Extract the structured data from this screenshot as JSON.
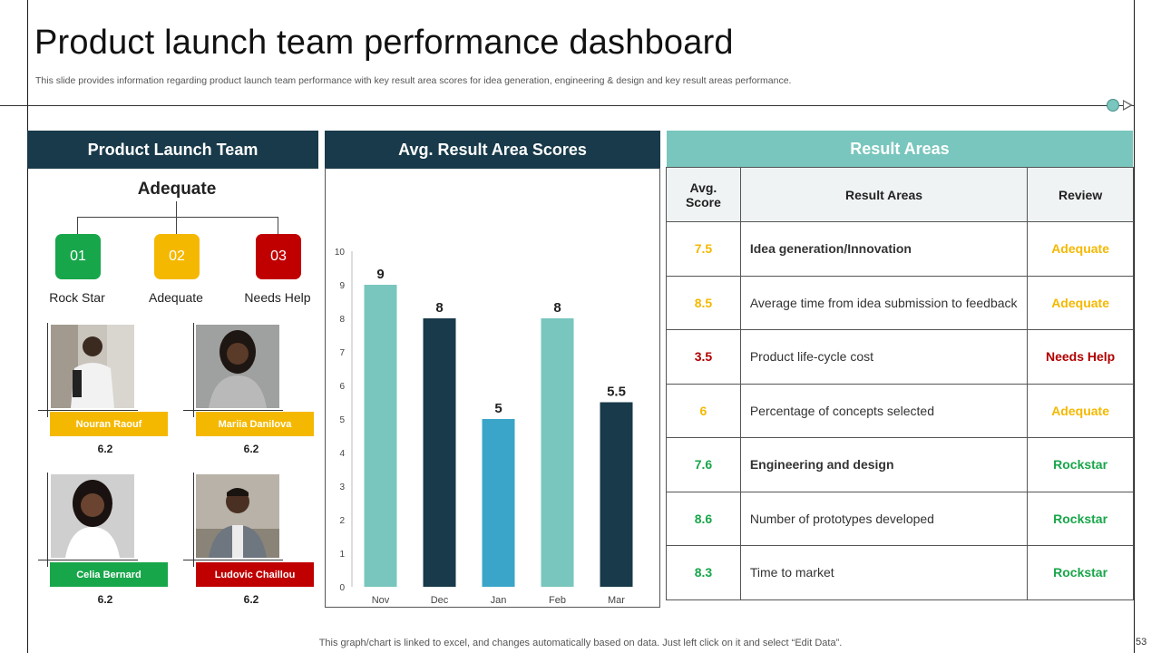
{
  "header": {
    "title": "Product launch team performance dashboard",
    "subtitle": "This slide provides information regarding product launch team performance with key result area scores for idea generation, engineering & design and key result areas performance."
  },
  "team_panel": {
    "title": "Product Launch Team",
    "overall_level": "Adequate",
    "levels": [
      {
        "code": "01",
        "label": "Rock Star",
        "color": "#18a64a"
      },
      {
        "code": "02",
        "label": "Adequate",
        "color": "#f5b800"
      },
      {
        "code": "03",
        "label": "Needs Help",
        "color": "#c00000"
      }
    ],
    "members": [
      {
        "name": "Nouran Raouf",
        "score": "6.2",
        "tag_color": "#f5b800"
      },
      {
        "name": "Mariia Danilova",
        "score": "6.2",
        "tag_color": "#f5b800"
      },
      {
        "name": "Celia Bernard",
        "score": "6.2",
        "tag_color": "#18a64a"
      },
      {
        "name": "Ludovic Chaillou",
        "score": "6.2",
        "tag_color": "#c00000"
      }
    ]
  },
  "chart_panel": {
    "title": "Avg. Result Area Scores"
  },
  "chart_data": {
    "type": "bar",
    "title": "Avg. Result Area Scores",
    "categories": [
      "Nov",
      "Dec",
      "Jan",
      "Feb",
      "Mar"
    ],
    "values": [
      9,
      8,
      5,
      8,
      5.5
    ],
    "data_labels": [
      "9",
      "8",
      "5",
      "8",
      "5.5"
    ],
    "bar_colors": [
      "#78c6bd",
      "#183a4a",
      "#3aa5c8",
      "#78c6bd",
      "#183a4a"
    ],
    "ylim": [
      0,
      10
    ],
    "yticks": [
      "0",
      "1",
      "2",
      "3",
      "4",
      "5",
      "6",
      "7",
      "8",
      "9",
      "10"
    ],
    "xlabel": "",
    "ylabel": "",
    "grid": false
  },
  "table_panel": {
    "title": "Result Areas",
    "columns": [
      "Avg. Score",
      "Result Areas",
      "Review"
    ],
    "rows": [
      {
        "score": "7.5",
        "area": "Idea generation/Innovation",
        "review": "Adequate",
        "color": "#f5b800",
        "bold": true
      },
      {
        "score": "8.5",
        "area": "Average time from idea submission to feedback",
        "review": "Adequate",
        "color": "#f5b800",
        "bold": false
      },
      {
        "score": "3.5",
        "area": "Product life-cycle cost",
        "review": "Needs Help",
        "color": "#b00000",
        "bold": false
      },
      {
        "score": "6",
        "area": "Percentage of concepts selected",
        "review": "Adequate",
        "color": "#f5b800",
        "bold": false
      },
      {
        "score": "7.6",
        "area": "Engineering and design",
        "review": "Rockstar",
        "color": "#18a64a",
        "bold": true
      },
      {
        "score": "8.6",
        "area": "Number  of prototypes developed",
        "review": "Rockstar",
        "color": "#18a64a",
        "bold": false
      },
      {
        "score": "8.3",
        "area": "Time to market",
        "review": "Rockstar",
        "color": "#18a64a",
        "bold": false
      }
    ]
  },
  "footer": {
    "note": "This graph/chart is linked to excel,  and changes automatically based on data. Just left click on it and select “Edit Data”.",
    "page_number": "53"
  }
}
